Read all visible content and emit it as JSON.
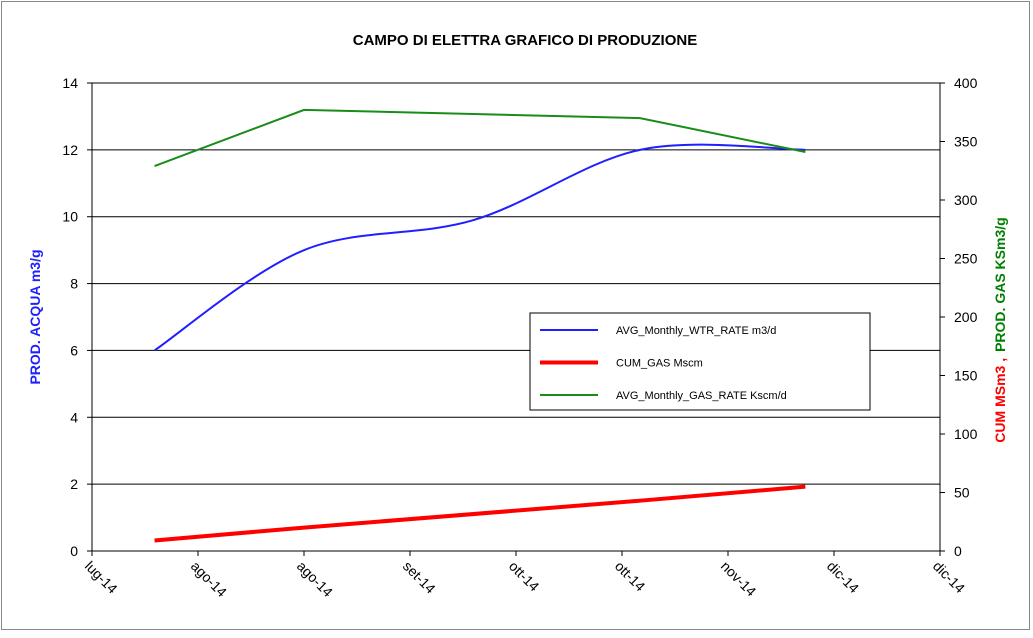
{
  "chart_data": {
    "type": "line",
    "title": "CAMPO DI ELETTRA  GRAFICO DI PRODUZIONE",
    "ylabel": "PROD. ACQUA m3/g",
    "y2label": [
      {
        "text": "CUM MSm3  ,",
        "color": "#ff0000"
      },
      {
        "text": "PROD. GAS KSm3/g",
        "color": "#008000"
      }
    ],
    "xlim": [
      0,
      8
    ],
    "xticks": [
      {
        "value": 0,
        "label": "lug-14"
      },
      {
        "value": 1,
        "label": "ago-14"
      },
      {
        "value": 2,
        "label": "ago-14"
      },
      {
        "value": 3,
        "label": "set-14"
      },
      {
        "value": 4,
        "label": "ott-14"
      },
      {
        "value": 5,
        "label": "ott-14"
      },
      {
        "value": 6,
        "label": "nov-14"
      },
      {
        "value": 7,
        "label": "dic-14"
      },
      {
        "value": 8,
        "label": "dic-14"
      }
    ],
    "ylim": [
      0,
      14
    ],
    "yticks": [
      0,
      2,
      4,
      6,
      8,
      10,
      12,
      14
    ],
    "y2lim": [
      0,
      400
    ],
    "y2ticks": [
      0,
      50,
      100,
      150,
      200,
      250,
      300,
      350,
      400
    ],
    "grid": true,
    "series": [
      {
        "name": "AVG_Monthly_WTR_RATE m3/d",
        "color": "#1f1fff",
        "width": 2,
        "smooth": true,
        "x": [
          0.59,
          2.0,
          3.6,
          5.17,
          6.73
        ],
        "values": [
          6,
          9,
          9.9,
          12,
          12
        ]
      },
      {
        "name": "CUM_GAS Mscm",
        "color": "#ff0000",
        "width": 4,
        "axis": "y2",
        "x": [
          0.59,
          2.0,
          5.17,
          6.73
        ],
        "values": [
          9,
          20,
          43,
          55
        ]
      },
      {
        "name": "AVG_Monthly_GAS_RATE Kscm/d",
        "color": "#1a8c1a",
        "width": 2,
        "axis": "y2",
        "x": [
          0.59,
          2.0,
          5.17,
          6.73
        ],
        "values": [
          329,
          377,
          370,
          341
        ]
      }
    ]
  }
}
